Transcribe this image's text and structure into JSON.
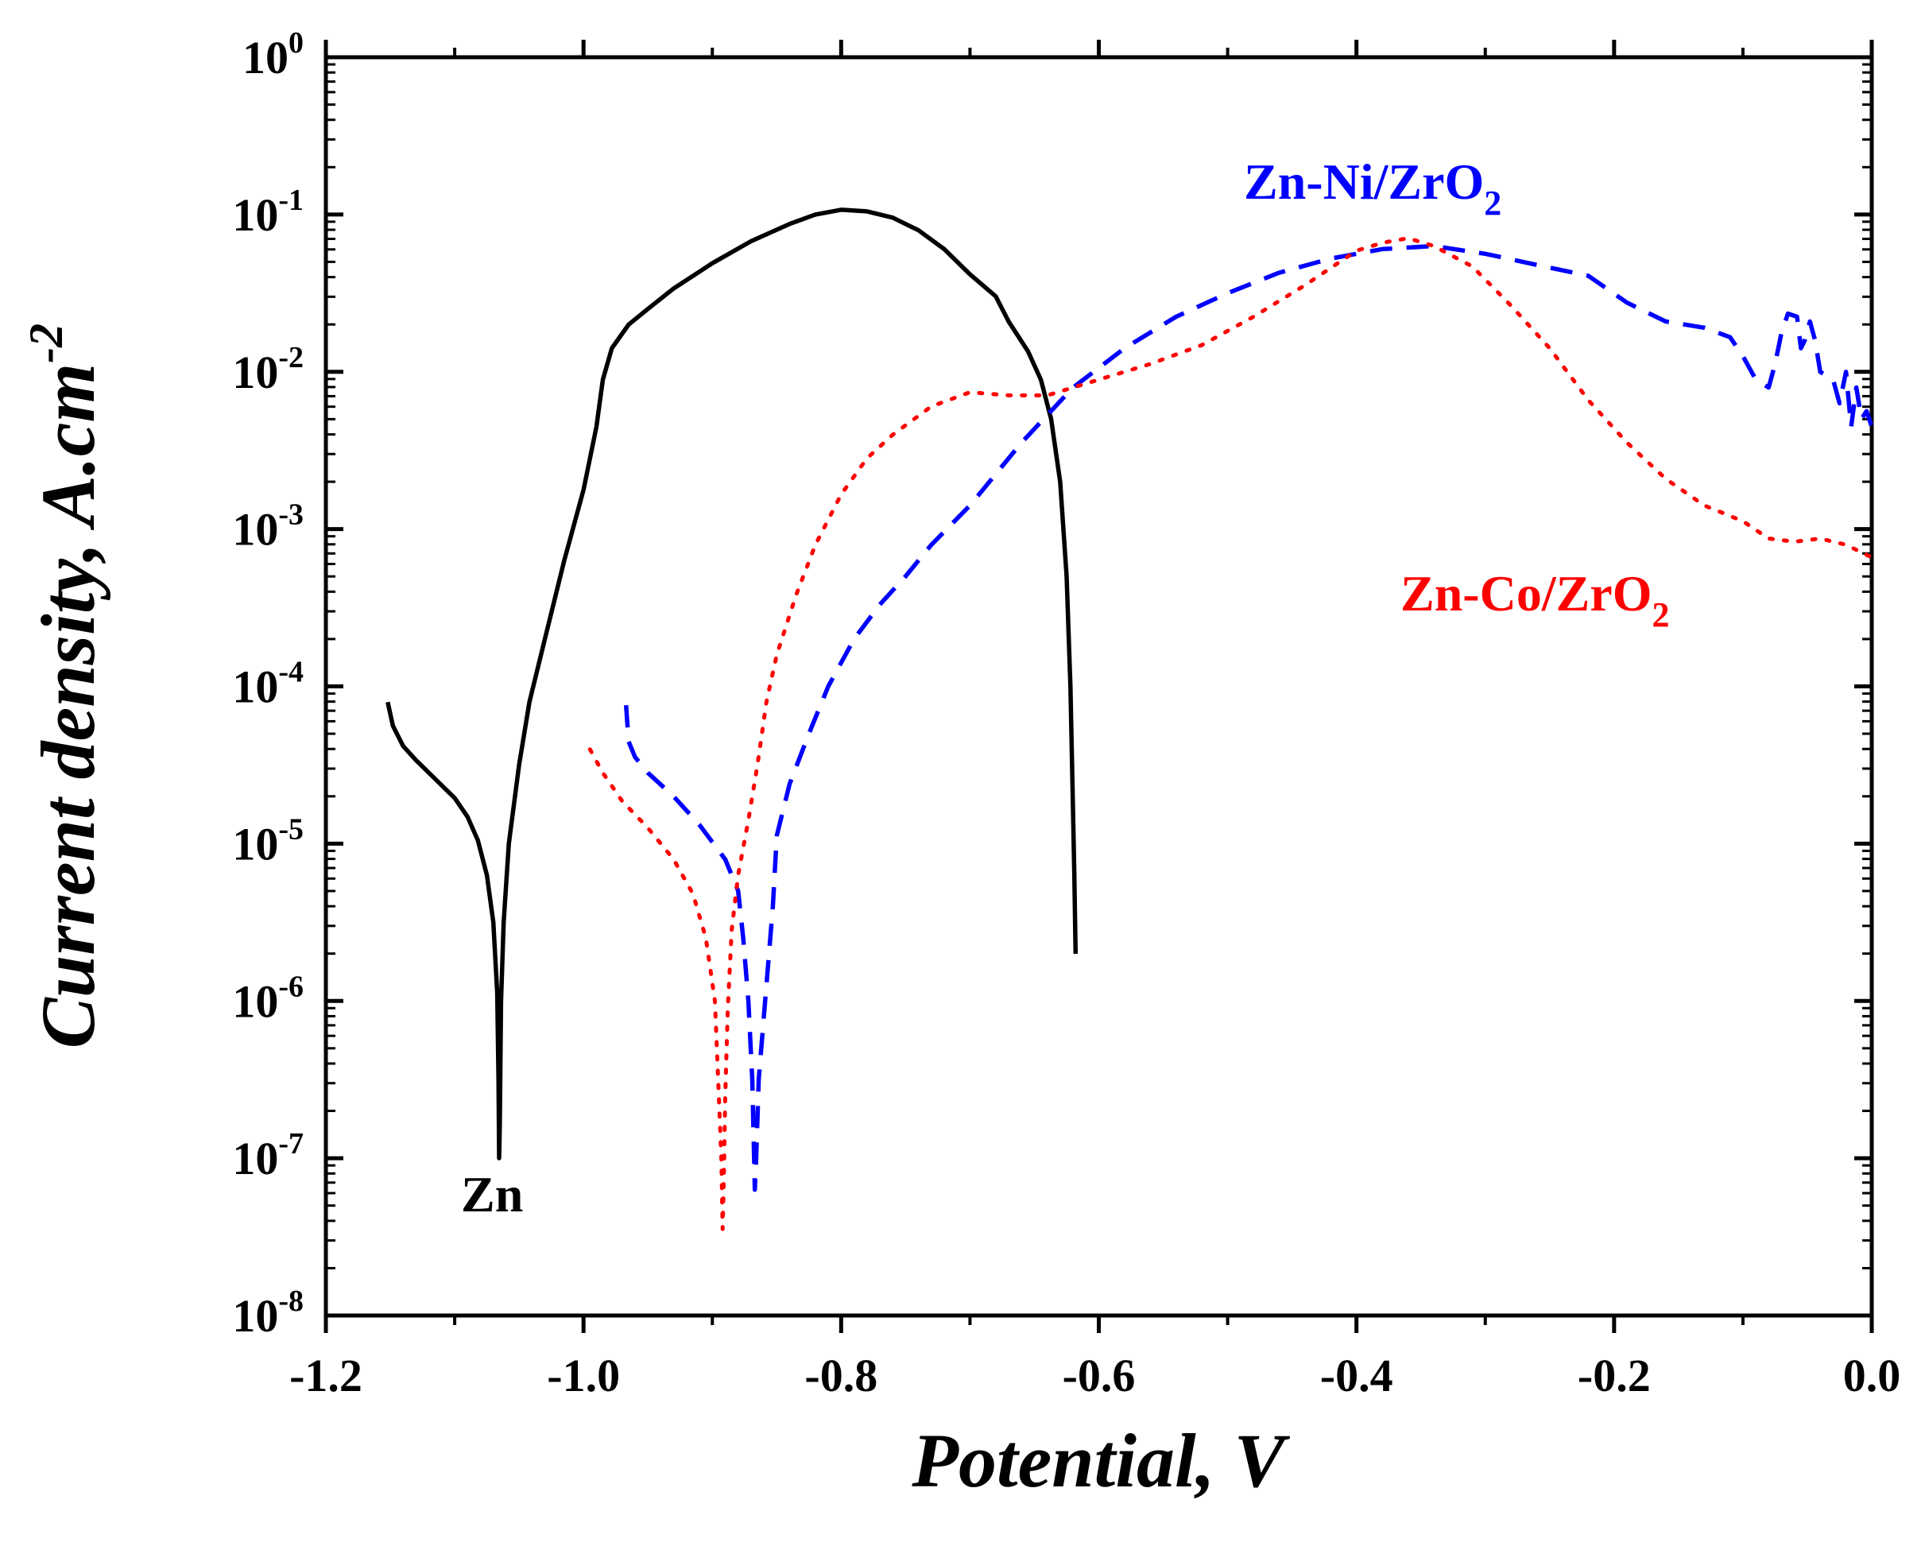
{
  "chart_data": {
    "type": "line",
    "xlabel": "Potential, V",
    "ylabel": "Current density, A.cm",
    "ylabel_exp": "-2",
    "xlim": [
      -1.2,
      0.0
    ],
    "ylim_log10": [
      -8,
      0
    ],
    "yscale": "log",
    "grid": false,
    "legend": "inline labels",
    "x_ticks": [
      {
        "value": -1.2,
        "label": "-1.2"
      },
      {
        "value": -1.0,
        "label": "-1.0"
      },
      {
        "value": -0.8,
        "label": "-0.8"
      },
      {
        "value": -0.6,
        "label": "-0.6"
      },
      {
        "value": -0.4,
        "label": "-0.4"
      },
      {
        "value": -0.2,
        "label": "-0.2"
      },
      {
        "value": 0.0,
        "label": "0.0"
      }
    ],
    "y_ticks": [
      {
        "exp": 0,
        "base": "10",
        "sup": "0"
      },
      {
        "exp": -1,
        "base": "10",
        "sup": "-1"
      },
      {
        "exp": -2,
        "base": "10",
        "sup": "-2"
      },
      {
        "exp": -3,
        "base": "10",
        "sup": "-3"
      },
      {
        "exp": -4,
        "base": "10",
        "sup": "-4"
      },
      {
        "exp": -5,
        "base": "10",
        "sup": "-5"
      },
      {
        "exp": -6,
        "base": "10",
        "sup": "-6"
      },
      {
        "exp": -7,
        "base": "10",
        "sup": "-7"
      },
      {
        "exp": -8,
        "base": "10",
        "sup": "-8"
      }
    ],
    "series": [
      {
        "name": "Zn",
        "label": "Zn",
        "color": "#000000",
        "dash": "solid",
        "points": [
          [
            -1.152,
            -4.1
          ],
          [
            -1.148,
            -4.25
          ],
          [
            -1.14,
            -4.38
          ],
          [
            -1.13,
            -4.47
          ],
          [
            -1.12,
            -4.55
          ],
          [
            -1.11,
            -4.63
          ],
          [
            -1.1,
            -4.71
          ],
          [
            -1.09,
            -4.83
          ],
          [
            -1.082,
            -4.98
          ],
          [
            -1.075,
            -5.2
          ],
          [
            -1.07,
            -5.5
          ],
          [
            -1.067,
            -5.95
          ],
          [
            -1.066,
            -6.5
          ],
          [
            -1.0655,
            -7.0
          ],
          [
            -1.065,
            -6.8
          ],
          [
            -1.064,
            -6.0
          ],
          [
            -1.062,
            -5.5
          ],
          [
            -1.058,
            -5.0
          ],
          [
            -1.05,
            -4.5
          ],
          [
            -1.042,
            -4.1
          ],
          [
            -1.03,
            -3.7
          ],
          [
            -1.015,
            -3.2
          ],
          [
            -1.0,
            -2.75
          ],
          [
            -0.99,
            -2.35
          ],
          [
            -0.985,
            -2.05
          ],
          [
            -0.978,
            -1.85
          ],
          [
            -0.965,
            -1.7
          ],
          [
            -0.95,
            -1.6
          ],
          [
            -0.93,
            -1.47
          ],
          [
            -0.9,
            -1.31
          ],
          [
            -0.87,
            -1.17
          ],
          [
            -0.84,
            -1.06
          ],
          [
            -0.82,
            -1.0
          ],
          [
            -0.8,
            -0.97
          ],
          [
            -0.78,
            -0.98
          ],
          [
            -0.76,
            -1.02
          ],
          [
            -0.74,
            -1.1
          ],
          [
            -0.72,
            -1.22
          ],
          [
            -0.7,
            -1.38
          ],
          [
            -0.68,
            -1.52
          ],
          [
            -0.67,
            -1.68
          ],
          [
            -0.655,
            -1.87
          ],
          [
            -0.645,
            -2.05
          ],
          [
            -0.637,
            -2.3
          ],
          [
            -0.63,
            -2.7
          ],
          [
            -0.625,
            -3.3
          ],
          [
            -0.622,
            -4.0
          ],
          [
            -0.62,
            -4.8
          ],
          [
            -0.619,
            -5.2
          ],
          [
            -0.618,
            -5.7
          ]
        ]
      },
      {
        "name": "Zn-Ni/ZrO2",
        "label": "Zn-Ni/ZrO",
        "label_sub": "2",
        "color": "#0000ff",
        "dash": "dashed",
        "points": [
          [
            -0.967,
            -4.12
          ],
          [
            -0.965,
            -4.35
          ],
          [
            -0.96,
            -4.45
          ],
          [
            -0.95,
            -4.55
          ],
          [
            -0.93,
            -4.7
          ],
          [
            -0.91,
            -4.88
          ],
          [
            -0.89,
            -5.1
          ],
          [
            -0.88,
            -5.3
          ],
          [
            -0.876,
            -5.6
          ],
          [
            -0.872,
            -6.0
          ],
          [
            -0.869,
            -6.5
          ],
          [
            -0.867,
            -7.2
          ],
          [
            -0.866,
            -7.0
          ],
          [
            -0.864,
            -6.5
          ],
          [
            -0.858,
            -5.9
          ],
          [
            -0.853,
            -5.4
          ],
          [
            -0.85,
            -4.95
          ],
          [
            -0.84,
            -4.62
          ],
          [
            -0.825,
            -4.3
          ],
          [
            -0.81,
            -4.0
          ],
          [
            -0.79,
            -3.7
          ],
          [
            -0.77,
            -3.48
          ],
          [
            -0.75,
            -3.3
          ],
          [
            -0.73,
            -3.1
          ],
          [
            -0.7,
            -2.85
          ],
          [
            -0.66,
            -2.45
          ],
          [
            -0.62,
            -2.1
          ],
          [
            -0.58,
            -1.85
          ],
          [
            -0.54,
            -1.65
          ],
          [
            -0.5,
            -1.5
          ],
          [
            -0.46,
            -1.37
          ],
          [
            -0.42,
            -1.28
          ],
          [
            -0.38,
            -1.22
          ],
          [
            -0.34,
            -1.2
          ],
          [
            -0.3,
            -1.25
          ],
          [
            -0.26,
            -1.32
          ],
          [
            -0.22,
            -1.39
          ],
          [
            -0.19,
            -1.56
          ],
          [
            -0.16,
            -1.68
          ],
          [
            -0.13,
            -1.72
          ],
          [
            -0.11,
            -1.78
          ],
          [
            -0.1,
            -1.9
          ],
          [
            -0.09,
            -2.05
          ],
          [
            -0.08,
            -2.1
          ],
          [
            -0.075,
            -1.95
          ],
          [
            -0.07,
            -1.75
          ],
          [
            -0.065,
            -1.63
          ],
          [
            -0.058,
            -1.65
          ],
          [
            -0.055,
            -1.85
          ],
          [
            -0.052,
            -1.8
          ],
          [
            -0.048,
            -1.68
          ],
          [
            -0.044,
            -1.8
          ],
          [
            -0.04,
            -2.0
          ],
          [
            -0.03,
            -2.05
          ],
          [
            -0.025,
            -2.2
          ],
          [
            -0.02,
            -2.0
          ],
          [
            -0.016,
            -2.35
          ],
          [
            -0.012,
            -2.1
          ],
          [
            -0.008,
            -2.3
          ],
          [
            -0.004,
            -2.25
          ],
          [
            0.0,
            -2.35
          ]
        ]
      },
      {
        "name": "Zn-Co/ZrO2",
        "label": "Zn-Co/ZrO",
        "label_sub": "2",
        "color": "#ff0000",
        "dash": "dotted",
        "points": [
          [
            -0.995,
            -4.4
          ],
          [
            -0.985,
            -4.55
          ],
          [
            -0.97,
            -4.73
          ],
          [
            -0.95,
            -4.9
          ],
          [
            -0.93,
            -5.1
          ],
          [
            -0.915,
            -5.32
          ],
          [
            -0.905,
            -5.6
          ],
          [
            -0.898,
            -6.0
          ],
          [
            -0.895,
            -6.6
          ],
          [
            -0.893,
            -7.0
          ],
          [
            -0.892,
            -7.45
          ],
          [
            -0.891,
            -7.1
          ],
          [
            -0.89,
            -6.6
          ],
          [
            -0.888,
            -6.05
          ],
          [
            -0.885,
            -5.55
          ],
          [
            -0.88,
            -5.2
          ],
          [
            -0.872,
            -4.85
          ],
          [
            -0.865,
            -4.5
          ],
          [
            -0.858,
            -4.1
          ],
          [
            -0.85,
            -3.8
          ],
          [
            -0.835,
            -3.42
          ],
          [
            -0.82,
            -3.1
          ],
          [
            -0.8,
            -2.78
          ],
          [
            -0.78,
            -2.55
          ],
          [
            -0.76,
            -2.4
          ],
          [
            -0.73,
            -2.22
          ],
          [
            -0.7,
            -2.13
          ],
          [
            -0.67,
            -2.15
          ],
          [
            -0.64,
            -2.15
          ],
          [
            -0.6,
            -2.05
          ],
          [
            -0.56,
            -1.95
          ],
          [
            -0.52,
            -1.83
          ],
          [
            -0.48,
            -1.65
          ],
          [
            -0.44,
            -1.45
          ],
          [
            -0.4,
            -1.23
          ],
          [
            -0.38,
            -1.18
          ],
          [
            -0.36,
            -1.15
          ],
          [
            -0.34,
            -1.2
          ],
          [
            -0.31,
            -1.33
          ],
          [
            -0.28,
            -1.58
          ],
          [
            -0.25,
            -1.85
          ],
          [
            -0.22,
            -2.18
          ],
          [
            -0.19,
            -2.45
          ],
          [
            -0.16,
            -2.68
          ],
          [
            -0.13,
            -2.85
          ],
          [
            -0.1,
            -2.95
          ],
          [
            -0.08,
            -3.06
          ],
          [
            -0.06,
            -3.08
          ],
          [
            -0.04,
            -3.06
          ],
          [
            -0.02,
            -3.1
          ],
          [
            0.0,
            -3.18
          ]
        ]
      }
    ]
  }
}
